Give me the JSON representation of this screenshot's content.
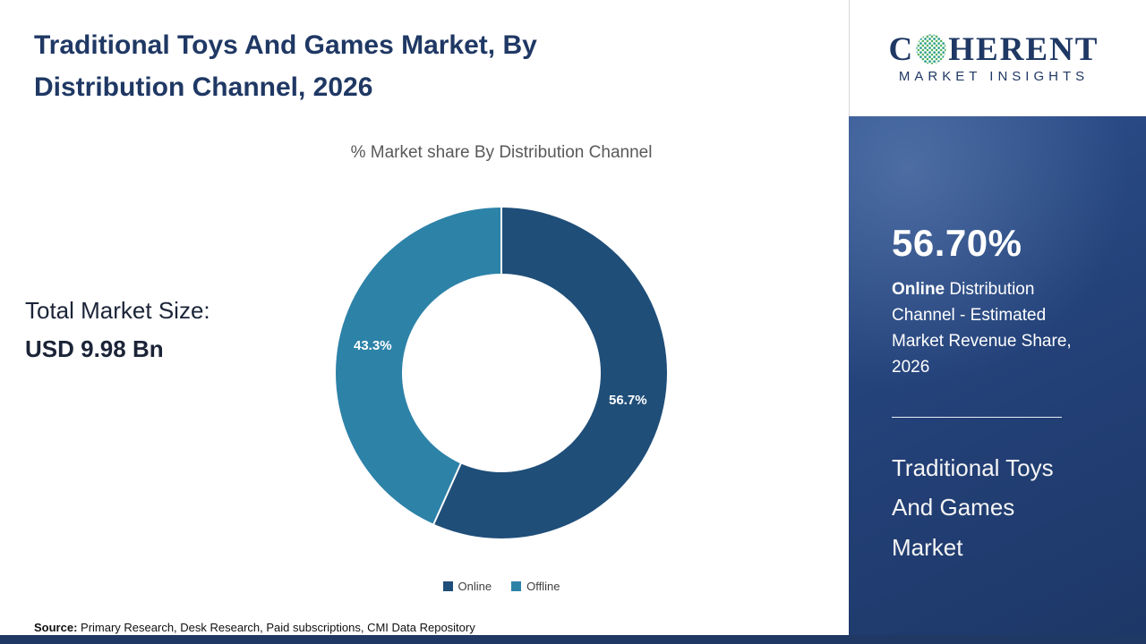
{
  "header": {
    "title": "Traditional Toys And Games Market,  By Distribution Channel, 2026"
  },
  "left": {
    "market_size_label": "Total Market Size:",
    "market_size_value": "USD 9.98 Bn"
  },
  "chart_data": {
    "type": "pie",
    "donut": true,
    "title": "% Market share  By Distribution Channel",
    "categories": [
      "Online",
      "Offline"
    ],
    "values": [
      56.7,
      43.3
    ],
    "labels": [
      "56.7%",
      "43.3%"
    ],
    "colors": [
      "#1f4e79",
      "#2d82a8"
    ],
    "legend_position": "bottom"
  },
  "sidebar": {
    "logo": {
      "part1": "C",
      "part2": "HERENT",
      "subtitle": "MARKET INSIGHTS"
    },
    "stat_value": "56.70%",
    "stat_bold": "Online",
    "stat_rest": " Distribution Channel - Estimated Market Revenue Share, 2026",
    "market_name": "Traditional Toys And Games Market"
  },
  "footer": {
    "source_label": "Source:",
    "source_text": " Primary Research, Desk Research, Paid subscriptions, CMI Data Repository"
  }
}
